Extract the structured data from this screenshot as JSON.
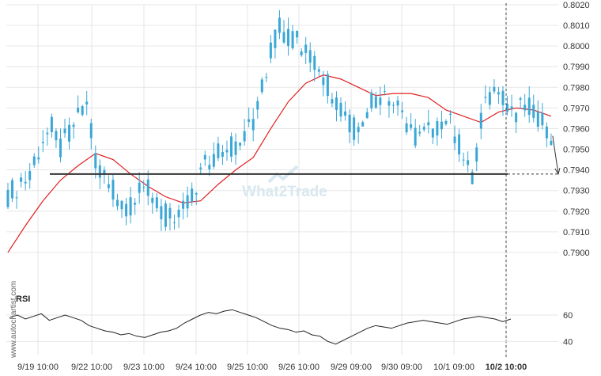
{
  "watermark": "What2Trade",
  "side_label": "www.autochartist.com",
  "rsi_label": "RSI",
  "colors": {
    "candle": "#3aa7d6",
    "ma": "#e02020",
    "support": "#333333",
    "rsi_line": "#222222",
    "grid": "#e6e6e6",
    "watermark": "#d8e8f0"
  },
  "chart_data": {
    "type": "candlestick",
    "x_tick_labels": [
      "9/19 10:00",
      "9/22 10:00",
      "9/23 10:00",
      "9/24 10:00",
      "9/25 10:00",
      "9/26 10:00",
      "9/29 09:00",
      "9/30 09:00",
      "10/1 09:00",
      "10/2 10:00"
    ],
    "ylim": [
      0.789,
      0.802
    ],
    "y_ticks": [
      "0.8020",
      "0.8010",
      "0.8000",
      "0.7990",
      "0.7980",
      "0.7970",
      "0.7960",
      "0.7950",
      "0.7940",
      "0.7930",
      "0.7920",
      "0.7910",
      "0.7900"
    ],
    "support_level": 0.7938,
    "forecast_target": 0.7938,
    "price_path": [
      [
        0,
        0.7928
      ],
      [
        2,
        0.7932
      ],
      [
        4,
        0.7935
      ],
      [
        6,
        0.7945
      ],
      [
        8,
        0.7955
      ],
      [
        10,
        0.796
      ],
      [
        12,
        0.795
      ],
      [
        14,
        0.7958
      ],
      [
        16,
        0.7965
      ],
      [
        18,
        0.797
      ],
      [
        20,
        0.7945
      ],
      [
        22,
        0.7938
      ],
      [
        24,
        0.793
      ],
      [
        26,
        0.7925
      ],
      [
        28,
        0.7922
      ],
      [
        30,
        0.7928
      ],
      [
        32,
        0.793
      ],
      [
        34,
        0.7925
      ],
      [
        36,
        0.7918
      ],
      [
        38,
        0.7915
      ],
      [
        40,
        0.792
      ],
      [
        42,
        0.7925
      ],
      [
        44,
        0.7938
      ],
      [
        46,
        0.7945
      ],
      [
        48,
        0.795
      ],
      [
        50,
        0.7952
      ],
      [
        52,
        0.795
      ],
      [
        54,
        0.7955
      ],
      [
        56,
        0.7965
      ],
      [
        58,
        0.798
      ],
      [
        60,
        0.7998
      ],
      [
        62,
        0.801
      ],
      [
        64,
        0.8005
      ],
      [
        66,
        0.8003
      ],
      [
        68,
        0.7998
      ],
      [
        70,
        0.799
      ],
      [
        72,
        0.7985
      ],
      [
        74,
        0.7978
      ],
      [
        76,
        0.797
      ],
      [
        78,
        0.7962
      ],
      [
        80,
        0.7958
      ],
      [
        82,
        0.797
      ],
      [
        84,
        0.7975
      ],
      [
        86,
        0.7978
      ],
      [
        88,
        0.7972
      ],
      [
        90,
        0.7965
      ],
      [
        92,
        0.796
      ],
      [
        94,
        0.7955
      ],
      [
        96,
        0.7958
      ],
      [
        98,
        0.7962
      ],
      [
        100,
        0.7965
      ],
      [
        102,
        0.7958
      ],
      [
        104,
        0.7945
      ],
      [
        106,
        0.7935
      ],
      [
        108,
        0.7965
      ],
      [
        110,
        0.7975
      ],
      [
        112,
        0.7982
      ],
      [
        114,
        0.7972
      ],
      [
        116,
        0.7968
      ],
      [
        118,
        0.797
      ],
      [
        120,
        0.7968
      ],
      [
        122,
        0.7962
      ],
      [
        124,
        0.7958
      ]
    ],
    "ma_path": [
      [
        0,
        0.79
      ],
      [
        4,
        0.7913
      ],
      [
        8,
        0.7925
      ],
      [
        12,
        0.7935
      ],
      [
        16,
        0.7942
      ],
      [
        20,
        0.7948
      ],
      [
        24,
        0.7945
      ],
      [
        28,
        0.7938
      ],
      [
        32,
        0.7932
      ],
      [
        36,
        0.7927
      ],
      [
        40,
        0.7924
      ],
      [
        44,
        0.7925
      ],
      [
        48,
        0.7933
      ],
      [
        52,
        0.794
      ],
      [
        56,
        0.7946
      ],
      [
        60,
        0.796
      ],
      [
        64,
        0.7973
      ],
      [
        68,
        0.7982
      ],
      [
        72,
        0.7986
      ],
      [
        76,
        0.7984
      ],
      [
        80,
        0.798
      ],
      [
        84,
        0.7976
      ],
      [
        88,
        0.7977
      ],
      [
        92,
        0.7977
      ],
      [
        96,
        0.7975
      ],
      [
        100,
        0.7969
      ],
      [
        104,
        0.7966
      ],
      [
        108,
        0.7963
      ],
      [
        112,
        0.7968
      ],
      [
        116,
        0.797
      ],
      [
        120,
        0.7969
      ],
      [
        124,
        0.7966
      ]
    ],
    "rsi": {
      "y_ticks": [
        "60",
        "40"
      ],
      "ylim": [
        30,
        72
      ],
      "values": [
        58,
        60,
        57,
        59,
        61,
        56,
        58,
        60,
        58,
        56,
        52,
        50,
        48,
        47,
        45,
        46,
        44,
        43,
        45,
        47,
        48,
        50,
        54,
        57,
        60,
        62,
        61,
        63,
        64,
        62,
        60,
        58,
        55,
        52,
        50,
        49,
        47,
        48,
        45,
        44,
        40,
        38,
        41,
        44,
        47,
        50,
        52,
        51,
        50,
        52,
        54,
        55,
        56,
        55,
        54,
        53,
        55,
        57,
        58,
        59,
        58,
        57,
        55,
        57
      ]
    }
  }
}
